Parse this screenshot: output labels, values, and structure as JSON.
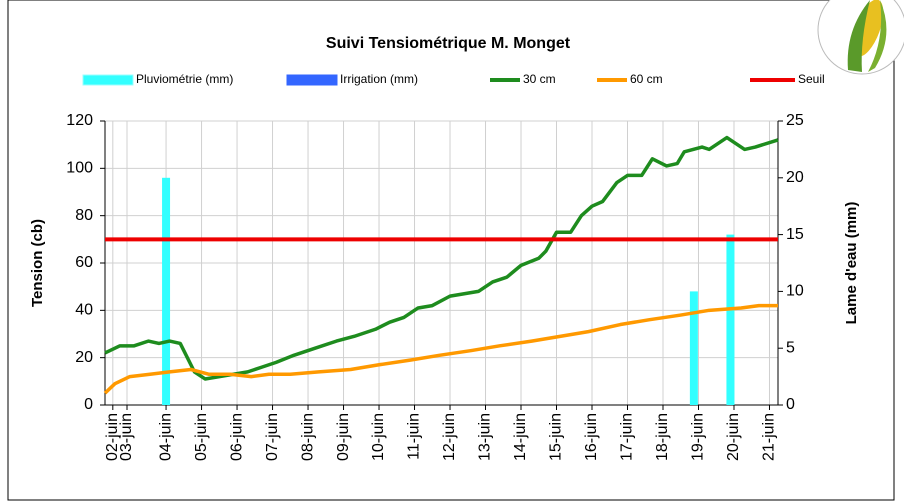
{
  "chart_data": {
    "type": "line",
    "title": "Suivi Tensiométrique M. Monget",
    "ylabel": "Tension (cb)",
    "y2label": "Lame d'eau (mm)",
    "xlim": [
      2.28,
      21.24
    ],
    "ylim": [
      0,
      120
    ],
    "yticks": [
      0,
      20,
      40,
      60,
      80,
      100,
      120
    ],
    "y2lim": [
      0,
      25
    ],
    "y2ticks": [
      0,
      5,
      10,
      15,
      20,
      25
    ],
    "xticks": [
      {
        "value": 2.5,
        "label": "02-juin"
      },
      {
        "value": 2.9,
        "label": "03-juin"
      },
      {
        "value": 4,
        "label": "04-juin"
      },
      {
        "value": 5,
        "label": "05-juin"
      },
      {
        "value": 6,
        "label": "06-juin"
      },
      {
        "value": 7,
        "label": "07-juin"
      },
      {
        "value": 8,
        "label": "08-juin"
      },
      {
        "value": 9,
        "label": "09-juin"
      },
      {
        "value": 10,
        "label": "10-juin"
      },
      {
        "value": 11,
        "label": "11-juin"
      },
      {
        "value": 12,
        "label": "12-juin"
      },
      {
        "value": 13,
        "label": "13-juin"
      },
      {
        "value": 14,
        "label": "14-juin"
      },
      {
        "value": 15,
        "label": "15-juin"
      },
      {
        "value": 16,
        "label": "16-juin"
      },
      {
        "value": 17,
        "label": "17-juin"
      },
      {
        "value": 18,
        "label": "18-juin"
      },
      {
        "value": 19,
        "label": "19-juin"
      },
      {
        "value": 20,
        "label": "20-juin"
      },
      {
        "value": 21,
        "label": "21-juin"
      }
    ],
    "grid": true,
    "series": [
      {
        "name": "Pluviométrie (mm)",
        "kind": "bar",
        "axis": "y2",
        "color": "#33ffff",
        "x": [
          4.0,
          18.87,
          19.9
        ],
        "values": [
          20,
          10,
          15
        ]
      },
      {
        "name": "Irrigation (mm)",
        "kind": "bar",
        "axis": "y2",
        "color": "#3366ff",
        "x": [],
        "values": []
      },
      {
        "name": "30 cm",
        "kind": "line",
        "color": "#1e8c1e",
        "x": [
          2.28,
          2.7,
          3.1,
          3.5,
          3.8,
          4.1,
          4.4,
          4.5,
          4.8,
          5.1,
          5.5,
          5.9,
          6.3,
          6.7,
          7.1,
          7.6,
          8.2,
          8.8,
          9.3,
          9.9,
          10.3,
          10.7,
          11.1,
          11.5,
          12.0,
          12.4,
          12.8,
          13.2,
          13.6,
          14.0,
          14.5,
          14.7,
          15.0,
          15.4,
          15.7,
          16.0,
          16.3,
          16.7,
          17.0,
          17.4,
          17.7,
          18.1,
          18.4,
          18.6,
          19.1,
          19.3,
          19.8,
          20.0,
          20.3,
          20.6,
          21.24
        ],
        "values": [
          22,
          25,
          25,
          27,
          26,
          27,
          26,
          23,
          14,
          11,
          12,
          13,
          14,
          16,
          18,
          21,
          24,
          27,
          29,
          32,
          35,
          37,
          41,
          42,
          46,
          47,
          48,
          52,
          54,
          59,
          62,
          65,
          73,
          73,
          80,
          84,
          86,
          94,
          97,
          97,
          104,
          101,
          102,
          107,
          109,
          108,
          113,
          111,
          108,
          109,
          112
        ]
      },
      {
        "name": "60 cm",
        "kind": "line",
        "color": "#ff9900",
        "x": [
          2.28,
          2.56,
          2.98,
          3.55,
          4.1,
          4.7,
          5.2,
          5.8,
          6.4,
          6.9,
          7.5,
          8.3,
          9.2,
          10.0,
          10.9,
          11.7,
          12.6,
          13.4,
          14.3,
          15.1,
          15.9,
          16.8,
          17.6,
          18.5,
          19.3,
          20.2,
          20.7,
          21.24
        ],
        "values": [
          5,
          9,
          12,
          13,
          14,
          15,
          13,
          13,
          12,
          13,
          13,
          14,
          15,
          17,
          19,
          21,
          23,
          25,
          27,
          29,
          31,
          34,
          36,
          38,
          40,
          41,
          42,
          42
        ]
      },
      {
        "name": "Seuil",
        "kind": "hline",
        "color": "#ee0000",
        "value": 70
      }
    ]
  }
}
